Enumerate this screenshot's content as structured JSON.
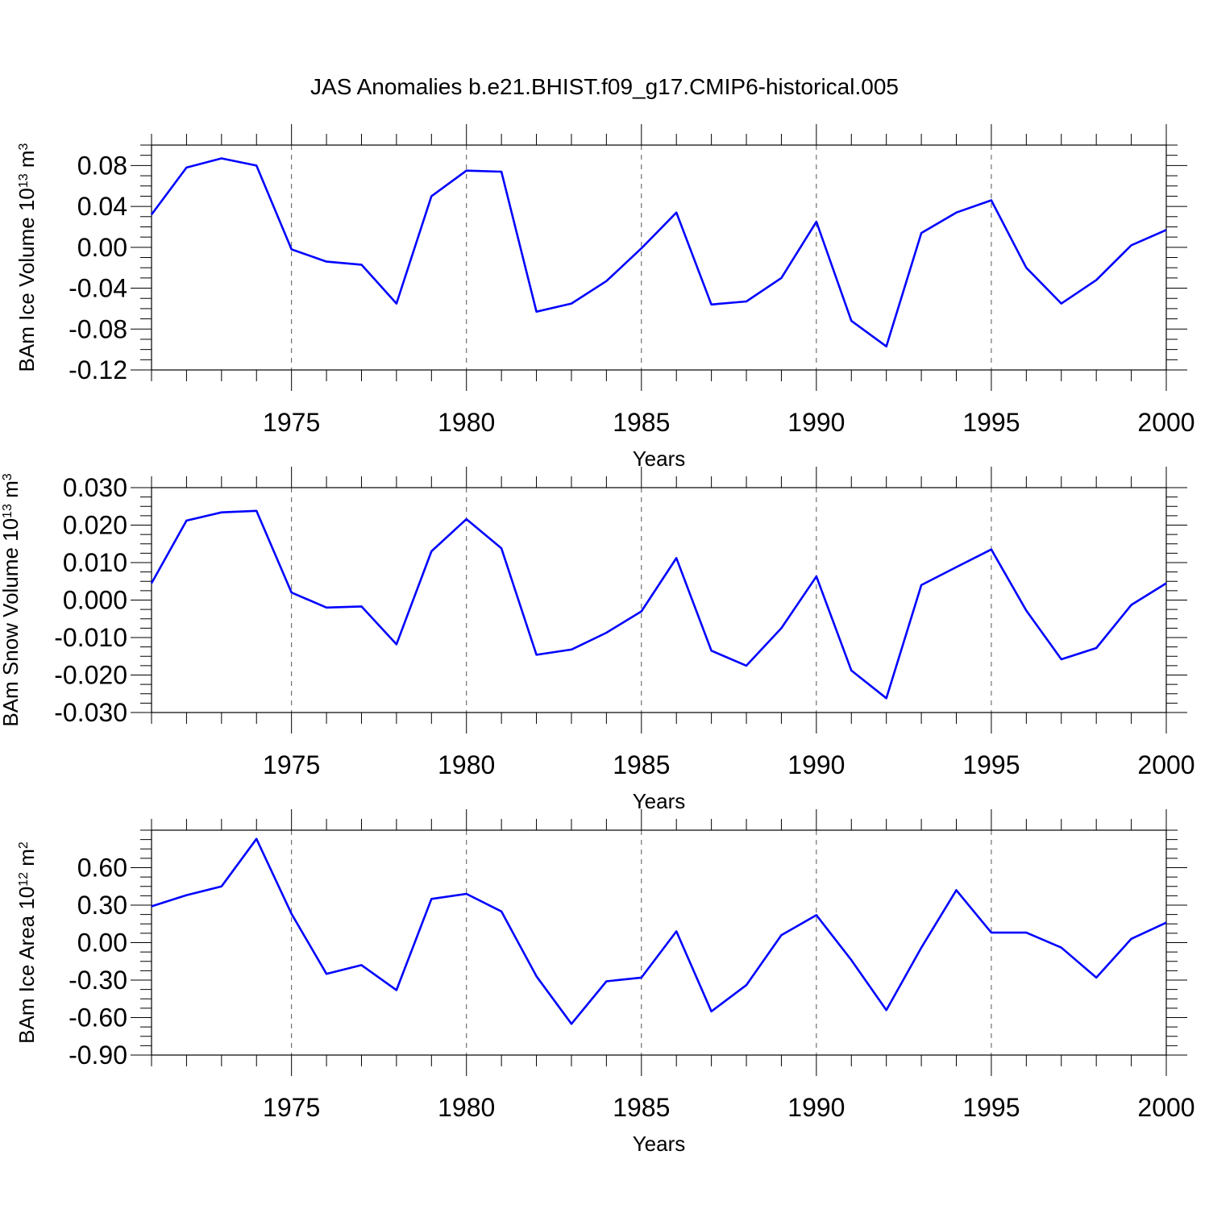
{
  "title": "JAS Anomalies b.e21.BHIST.f09_g17.CMIP6-historical.005",
  "line_color": "#0000ff",
  "chart_data": [
    {
      "type": "line",
      "ylabel": {
        "text": "BAm Ice Volume 10",
        "exponent": "13",
        "unit": "m",
        "unit_exponent": "3"
      },
      "xlabel": "Years",
      "xlim": [
        1971,
        2000
      ],
      "ylim": [
        -0.12,
        0.1
      ],
      "xticks": [
        1975,
        1980,
        1985,
        1990,
        1995,
        2000
      ],
      "xtick_labels": [
        "1975",
        "1980",
        "1985",
        "1990",
        "1995",
        "2000"
      ],
      "yticks": [
        -0.12,
        -0.08,
        -0.04,
        0.0,
        0.04,
        0.08
      ],
      "ytick_labels": [
        "-0.12",
        "-0.08",
        "-0.04",
        "0.00",
        "0.04",
        "0.08"
      ],
      "grid": "vertical dashed lines at major x ticks",
      "x": [
        1971,
        1972,
        1973,
        1974,
        1975,
        1976,
        1977,
        1978,
        1979,
        1980,
        1981,
        1982,
        1983,
        1984,
        1985,
        1986,
        1987,
        1988,
        1989,
        1990,
        1991,
        1992,
        1993,
        1994,
        1995,
        1996,
        1997,
        1998,
        1999,
        2000
      ],
      "values": [
        0.032,
        0.078,
        0.087,
        0.08,
        -0.002,
        -0.014,
        -0.017,
        -0.055,
        0.05,
        0.075,
        0.074,
        -0.063,
        -0.055,
        -0.033,
        -0.001,
        0.034,
        -0.056,
        -0.053,
        -0.03,
        0.025,
        -0.072,
        -0.097,
        0.014,
        0.034,
        0.046,
        -0.02,
        -0.055,
        -0.032,
        0.002,
        0.017
      ]
    },
    {
      "type": "line",
      "ylabel": {
        "text": "BAm Snow Volume 10",
        "exponent": "13",
        "unit": "m",
        "unit_exponent": "3"
      },
      "xlabel": "Years",
      "xlim": [
        1971,
        2000
      ],
      "ylim": [
        -0.03,
        0.03
      ],
      "xticks": [
        1975,
        1980,
        1985,
        1990,
        1995,
        2000
      ],
      "xtick_labels": [
        "1975",
        "1980",
        "1985",
        "1990",
        "1995",
        "2000"
      ],
      "yticks": [
        -0.03,
        -0.02,
        -0.01,
        0.0,
        0.01,
        0.02,
        0.03
      ],
      "ytick_labels": [
        "-0.030",
        "-0.020",
        "-0.010",
        "0.000",
        "0.010",
        "0.020",
        "0.030"
      ],
      "grid": "vertical dashed lines at major x ticks",
      "x": [
        1971,
        1972,
        1973,
        1974,
        1975,
        1976,
        1977,
        1978,
        1979,
        1980,
        1981,
        1982,
        1983,
        1984,
        1985,
        1986,
        1987,
        1988,
        1989,
        1990,
        1991,
        1992,
        1993,
        1994,
        1995,
        1996,
        1997,
        1998,
        1999,
        2000
      ],
      "values": [
        0.0045,
        0.0212,
        0.0234,
        0.0238,
        0.002,
        -0.002,
        -0.0017,
        -0.0118,
        0.013,
        0.0216,
        0.0138,
        -0.0146,
        -0.0132,
        -0.0087,
        -0.003,
        0.0112,
        -0.0135,
        -0.0175,
        -0.0075,
        0.0063,
        -0.0188,
        -0.0262,
        0.004,
        0.0088,
        0.0135,
        -0.0028,
        -0.0158,
        -0.0128,
        -0.0013,
        0.0045
      ]
    },
    {
      "type": "line",
      "ylabel": {
        "text": "BAm Ice Area 10",
        "exponent": "12",
        "unit": "m",
        "unit_exponent": "2"
      },
      "xlabel": "Years",
      "xlim": [
        1971,
        2000
      ],
      "ylim": [
        -0.9,
        0.9
      ],
      "xticks": [
        1975,
        1980,
        1985,
        1990,
        1995,
        2000
      ],
      "xtick_labels": [
        "1975",
        "1980",
        "1985",
        "1990",
        "1995",
        "2000"
      ],
      "yticks": [
        -0.9,
        -0.6,
        -0.3,
        0.0,
        0.3,
        0.6
      ],
      "ytick_labels": [
        "-0.90",
        "-0.60",
        "-0.30",
        "0.00",
        "0.30",
        "0.60"
      ],
      "grid": "vertical dashed lines at major x ticks",
      "x": [
        1971,
        1972,
        1973,
        1974,
        1975,
        1976,
        1977,
        1978,
        1979,
        1980,
        1981,
        1982,
        1983,
        1984,
        1985,
        1986,
        1987,
        1988,
        1989,
        1990,
        1991,
        1992,
        1993,
        1994,
        1995,
        1996,
        1997,
        1998,
        1999,
        2000
      ],
      "values": [
        0.29,
        0.38,
        0.45,
        0.83,
        0.23,
        -0.25,
        -0.18,
        -0.38,
        0.35,
        0.39,
        0.25,
        -0.27,
        -0.65,
        -0.31,
        -0.28,
        0.09,
        -0.55,
        -0.34,
        0.06,
        0.22,
        -0.14,
        -0.54,
        -0.04,
        0.42,
        0.08,
        0.08,
        -0.04,
        -0.28,
        0.03,
        0.16
      ]
    }
  ]
}
